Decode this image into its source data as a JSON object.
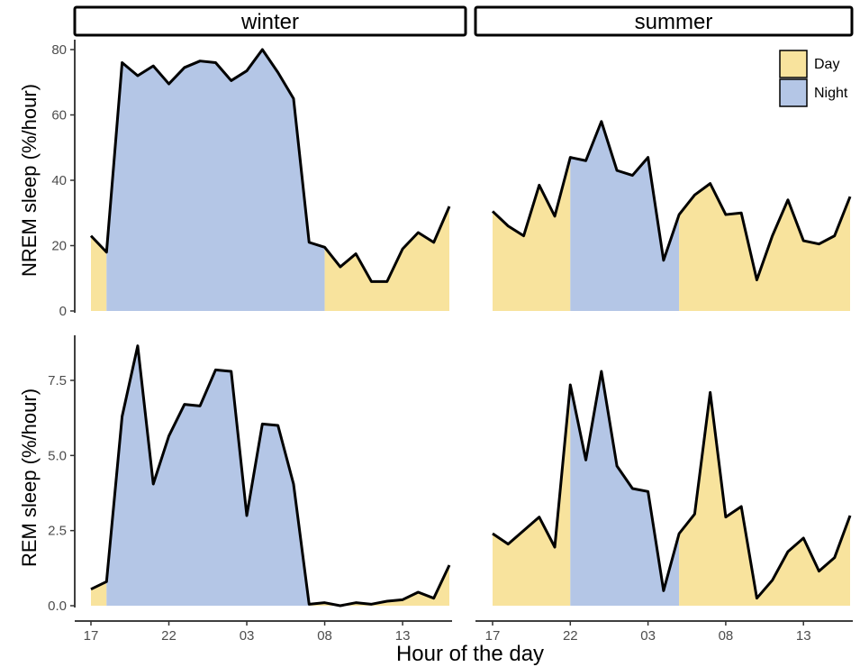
{
  "chart_data": {
    "type": "area",
    "facets": {
      "columns": [
        "winter",
        "summer"
      ],
      "rows": [
        "NREM sleep (%/hour)",
        "REM sleep (%/hour)"
      ]
    },
    "xlabel": "Hour of the day",
    "x_ticks": [
      "17",
      "22",
      "03",
      "08",
      "13"
    ],
    "x_hours": [
      17,
      18,
      19,
      20,
      21,
      22,
      23,
      0,
      1,
      2,
      3,
      4,
      5,
      6,
      7,
      8,
      9,
      10,
      11,
      12,
      13,
      14,
      15,
      16
    ],
    "legend": {
      "placement": "top-right",
      "entries": [
        {
          "label": "Day",
          "color": "#f8e39d"
        },
        {
          "label": "Night",
          "color": "#b4c6e6"
        }
      ]
    },
    "panels": [
      {
        "season": "winter",
        "measure": "NREM sleep (%/hour)",
        "ylim": [
          0,
          83
        ],
        "y_ticks": [
          "0",
          "20",
          "40",
          "60",
          "80"
        ],
        "values": [
          23,
          18,
          76,
          72,
          75,
          69.5,
          74.5,
          76.5,
          76,
          70.5,
          73.5,
          80,
          73,
          65,
          21,
          19.5,
          13.5,
          17.5,
          9,
          9,
          19,
          24,
          21,
          32
        ],
        "night_start_index": 1,
        "night_end_index": 15
      },
      {
        "season": "summer",
        "measure": "NREM sleep (%/hour)",
        "ylim": [
          0,
          83
        ],
        "y_ticks": [
          "0",
          "20",
          "40",
          "60",
          "80"
        ],
        "values": [
          30.5,
          26,
          23,
          38.5,
          29,
          47,
          46,
          58,
          43,
          41.5,
          47,
          15.5,
          29.5,
          35.5,
          39,
          29.5,
          30,
          9.5,
          23,
          34,
          21.5,
          20.5,
          23,
          35
        ],
        "night_start_index": 5,
        "night_end_index": 12
      },
      {
        "season": "winter",
        "measure": "REM sleep (%/hour)",
        "ylim": [
          0,
          8.7
        ],
        "y_ticks": [
          "0.0",
          "2.5",
          "5.0",
          "7.5"
        ],
        "values": [
          0.55,
          0.8,
          6.3,
          8.65,
          4.05,
          5.65,
          6.7,
          6.65,
          7.85,
          7.8,
          3,
          6.05,
          6,
          4.05,
          0.05,
          0.1,
          0,
          0.1,
          0.05,
          0.15,
          0.2,
          0.45,
          0.25,
          1.35
        ],
        "night_start_index": 1,
        "night_end_index": 14
      },
      {
        "season": "summer",
        "measure": "REM sleep (%/hour)",
        "ylim": [
          0,
          8.7
        ],
        "y_ticks": [
          "0.0",
          "2.5",
          "5.0",
          "7.5"
        ],
        "values": [
          2.4,
          2.05,
          2.5,
          2.95,
          1.95,
          7.35,
          4.85,
          7.8,
          4.65,
          3.9,
          3.8,
          0.5,
          2.4,
          3.05,
          7.1,
          2.95,
          3.3,
          0.25,
          0.85,
          1.8,
          2.25,
          1.15,
          1.6,
          3
        ],
        "night_start_index": 5,
        "night_end_index": 12
      }
    ]
  }
}
